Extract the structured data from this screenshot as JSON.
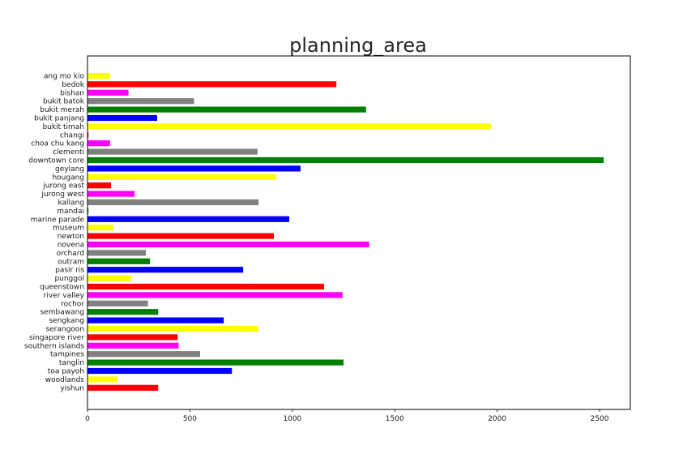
{
  "chart_data": {
    "type": "bar",
    "orientation": "horizontal",
    "title": "planning_area",
    "xlabel": "",
    "ylabel": "",
    "xlim": [
      0,
      2650
    ],
    "xticks": [
      0,
      500,
      1000,
      1500,
      2000,
      2500
    ],
    "grid": false,
    "categories": [
      "ang mo kio",
      "bedok",
      "bishan",
      "bukit batok",
      "bukit merah",
      "bukit panjang",
      "bukit timah",
      "changi",
      "choa chu kang",
      "clementi",
      "downtown core",
      "geylang",
      "hougang",
      "jurong east",
      "jurong west",
      "kallang",
      "mandai",
      "marine parade",
      "museum",
      "newton",
      "novena",
      "orchard",
      "outram",
      "pasir ris",
      "punggol",
      "queenstown",
      "river valley",
      "rochor",
      "sembawang",
      "sengkang",
      "serangoon",
      "singapore river",
      "southern islands",
      "tampines",
      "tanglin",
      "toa payoh",
      "woodlands",
      "yishun"
    ],
    "values": [
      110,
      1215,
      200,
      520,
      1360,
      340,
      1970,
      5,
      110,
      830,
      2520,
      1040,
      920,
      115,
      230,
      835,
      5,
      985,
      125,
      910,
      1375,
      285,
      305,
      760,
      215,
      1155,
      1245,
      295,
      345,
      665,
      835,
      440,
      445,
      550,
      1250,
      705,
      145,
      345
    ],
    "colors": [
      "#ffff00",
      "#ff0000",
      "#ff00ff",
      "#808080",
      "#008000",
      "#0000ff",
      "#ffff00",
      "#ff0000",
      "#ff00ff",
      "#808080",
      "#008000",
      "#0000ff",
      "#ffff00",
      "#ff0000",
      "#ff00ff",
      "#808080",
      "#008000",
      "#0000ff",
      "#ffff00",
      "#ff0000",
      "#ff00ff",
      "#808080",
      "#008000",
      "#0000ff",
      "#ffff00",
      "#ff0000",
      "#ff00ff",
      "#808080",
      "#008000",
      "#0000ff",
      "#ffff00",
      "#ff0000",
      "#ff00ff",
      "#808080",
      "#008000",
      "#0000ff",
      "#ffff00",
      "#ff0000"
    ]
  }
}
